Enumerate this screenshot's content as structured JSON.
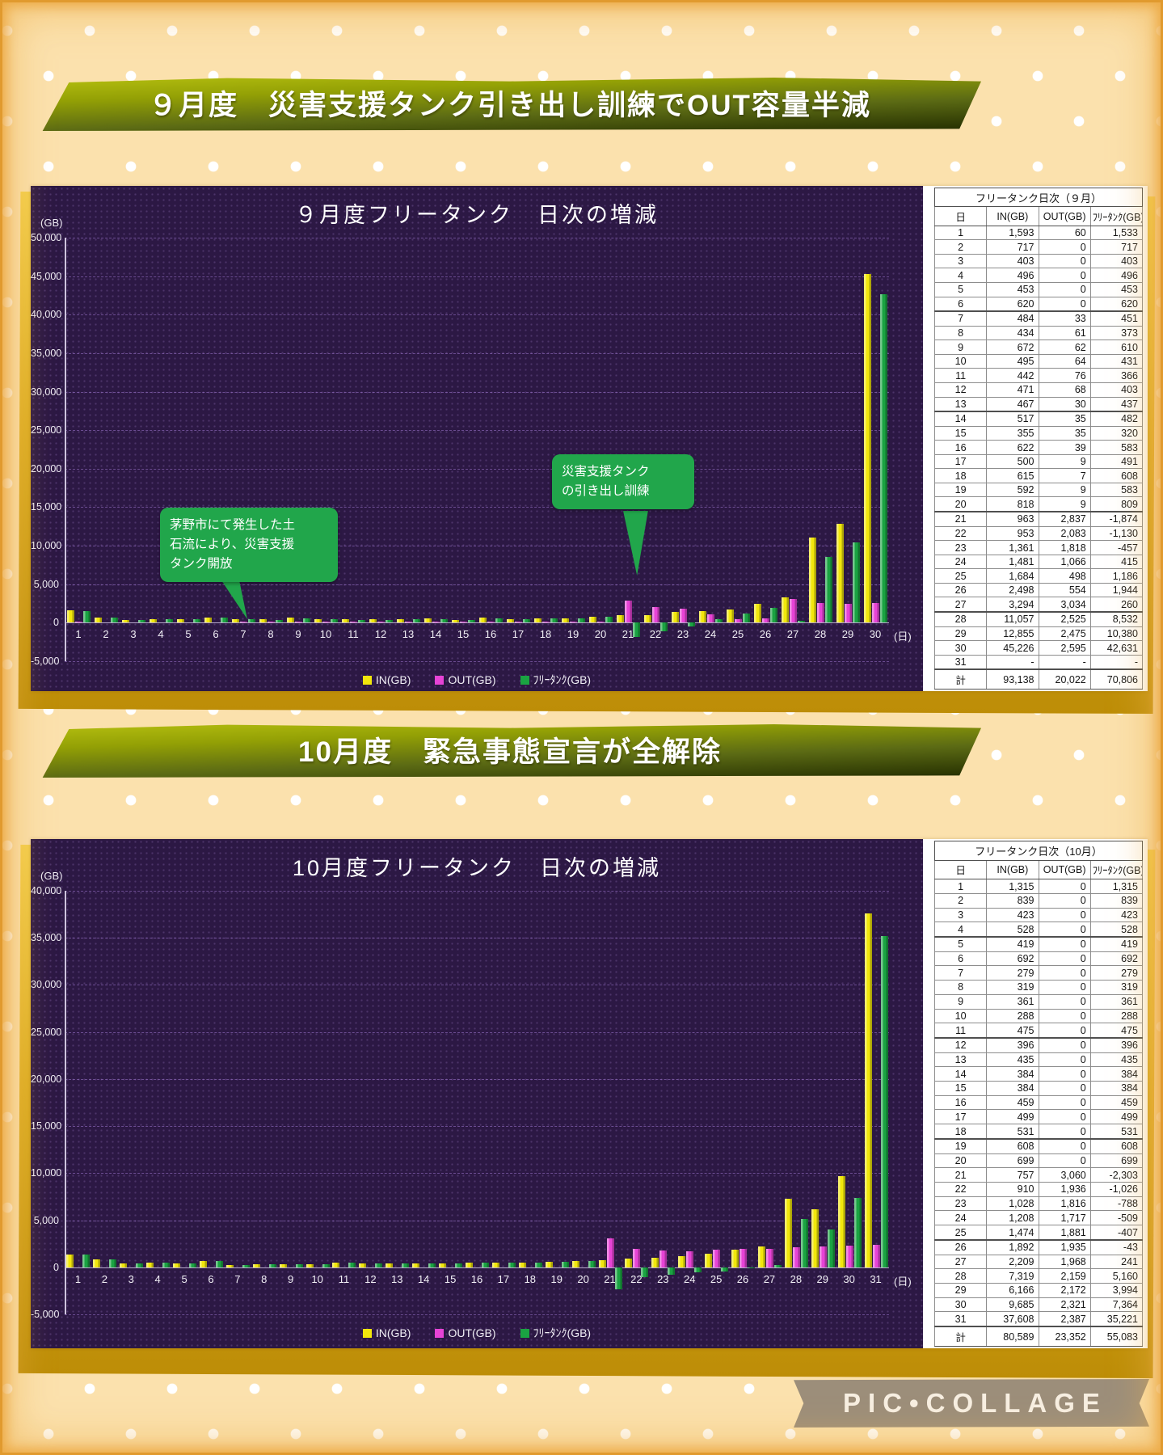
{
  "page": {
    "watermark": "PIC•COLLAGE",
    "colors": {
      "background": "#fbe1ad",
      "frame_orange": "#e8a43c",
      "mat_gold": "#d9a615",
      "banner_olive_top": "#b5bf10",
      "banner_olive_bottom": "#232d00",
      "chart_background": "#2c1844",
      "grid_purple": "#a078d2",
      "bar_in_yellow": "#f2e70c",
      "bar_out_magenta": "#e743d6",
      "bar_free_green": "#1aa342",
      "annotation_green": "#21a64b",
      "watermark_taupe": "#9c8e7a"
    }
  },
  "panels": [
    {
      "id": "september",
      "banner": "９月度　災害支援タンク引き出し訓練でOUT容量半減",
      "table_title": "フリータンク日次（９月）",
      "columns": [
        "日",
        "IN(GB)",
        "OUT(GB)",
        "ﾌﾘｰﾀﾝｸ(GB)"
      ],
      "total_label": "計"
    },
    {
      "id": "october",
      "banner": "10月度　緊急事態宣言が全解除",
      "table_title": "フリータンク日次（10月）",
      "columns": [
        "日",
        "IN(GB)",
        "OUT(GB)",
        "ﾌﾘｰﾀﾝｸ(GB)"
      ],
      "total_label": "計"
    }
  ],
  "chart_data": [
    {
      "type": "bar",
      "title": "９月度フリータンク　日次の増減",
      "ylabel": "(GB)",
      "xlabel": "(日)",
      "ylim": [
        -5000,
        50000
      ],
      "y_step": 5000,
      "days": 30,
      "grid": true,
      "legend_position": "bottom",
      "series": [
        {
          "name": "IN(GB)",
          "color": "#f2e70c",
          "values": [
            1593,
            717,
            403,
            496,
            453,
            620,
            484,
            434,
            672,
            495,
            442,
            471,
            467,
            517,
            355,
            622,
            500,
            615,
            592,
            818,
            963,
            953,
            1361,
            1481,
            1684,
            2498,
            3294,
            11057,
            12855,
            45226,
            null
          ]
        },
        {
          "name": "OUT(GB)",
          "color": "#e743d6",
          "values": [
            60,
            0,
            0,
            0,
            0,
            0,
            33,
            61,
            62,
            64,
            76,
            68,
            30,
            35,
            35,
            39,
            9,
            7,
            9,
            9,
            2837,
            2083,
            1818,
            1066,
            498,
            554,
            3034,
            2525,
            2475,
            2595,
            null
          ]
        },
        {
          "name": "ﾌﾘｰﾀﾝｸ(GB)",
          "color": "#1aa342",
          "values": [
            1533,
            717,
            403,
            496,
            453,
            620,
            451,
            373,
            610,
            431,
            366,
            403,
            437,
            482,
            320,
            583,
            491,
            608,
            583,
            809,
            -1874,
            -1130,
            -457,
            415,
            1186,
            1944,
            260,
            8532,
            10380,
            42631,
            null
          ]
        }
      ],
      "totals": [
        93138,
        20022,
        70806
      ],
      "week_breaks": [
        6,
        13,
        20,
        27
      ],
      "annotations": [
        {
          "text": "茅野市にて発生した土\n石流により、災害支援\nタンク開放",
          "target_day": 7
        },
        {
          "text": "災害支援タンク\nの引き出し訓練",
          "target_day": 21
        }
      ]
    },
    {
      "type": "bar",
      "title": "10月度フリータンク　日次の増減",
      "ylabel": "(GB)",
      "xlabel": "(日)",
      "ylim": [
        -5000,
        40000
      ],
      "y_step": 5000,
      "days": 31,
      "grid": true,
      "legend_position": "bottom",
      "series": [
        {
          "name": "IN(GB)",
          "color": "#f2e70c",
          "values": [
            1315,
            839,
            423,
            528,
            419,
            692,
            279,
            319,
            361,
            288,
            475,
            396,
            435,
            384,
            384,
            459,
            499,
            531,
            608,
            699,
            757,
            910,
            1028,
            1208,
            1474,
            1892,
            2209,
            7319,
            6166,
            9685,
            37608
          ]
        },
        {
          "name": "OUT(GB)",
          "color": "#e743d6",
          "values": [
            0,
            0,
            0,
            0,
            0,
            0,
            0,
            0,
            0,
            0,
            0,
            0,
            0,
            0,
            0,
            0,
            0,
            0,
            0,
            0,
            3060,
            1936,
            1816,
            1717,
            1881,
            1935,
            1968,
            2159,
            2172,
            2321,
            2387
          ]
        },
        {
          "name": "ﾌﾘｰﾀﾝｸ(GB)",
          "color": "#1aa342",
          "values": [
            1315,
            839,
            423,
            528,
            419,
            692,
            279,
            319,
            361,
            288,
            475,
            396,
            435,
            384,
            384,
            459,
            499,
            531,
            608,
            699,
            -2303,
            -1026,
            -788,
            -509,
            -407,
            -43,
            241,
            5160,
            3994,
            7364,
            35221
          ]
        }
      ],
      "totals": [
        80589,
        23352,
        55083
      ],
      "week_breaks": [
        4,
        11,
        18,
        25
      ],
      "annotations": []
    }
  ]
}
